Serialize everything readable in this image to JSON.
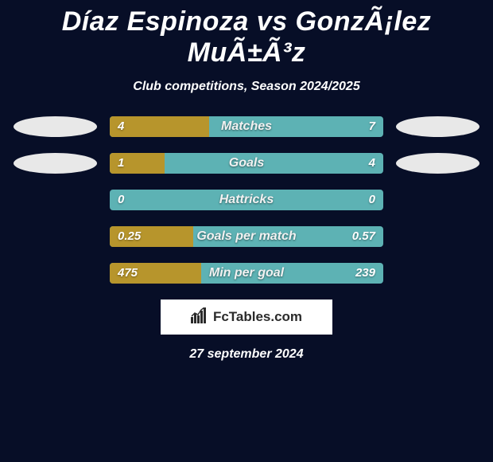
{
  "title": "Díaz Espinoza vs GonzÃ¡lez MuÃ±Ã³z",
  "subtitle": "Club competitions, Season 2024/2025",
  "rows": [
    {
      "label": "Matches",
      "left": "4",
      "right": "7",
      "left_pct": 36.4,
      "show_avatars": true
    },
    {
      "label": "Goals",
      "left": "1",
      "right": "4",
      "left_pct": 20.0,
      "show_avatars": true
    },
    {
      "label": "Hattricks",
      "left": "0",
      "right": "0",
      "left_pct": 0.0,
      "show_avatars": false
    },
    {
      "label": "Goals per match",
      "left": "0.25",
      "right": "0.57",
      "left_pct": 30.5,
      "show_avatars": false
    },
    {
      "label": "Min per goal",
      "left": "475",
      "right": "239",
      "left_pct": 33.5,
      "show_avatars": false
    }
  ],
  "logo_text": "FcTables.com",
  "date": "27 september 2024",
  "colors": {
    "bg": "#070e27",
    "left_bar": "#b7952c",
    "right_bar": "#5db2b4",
    "avatar": "#e8e8e8"
  }
}
